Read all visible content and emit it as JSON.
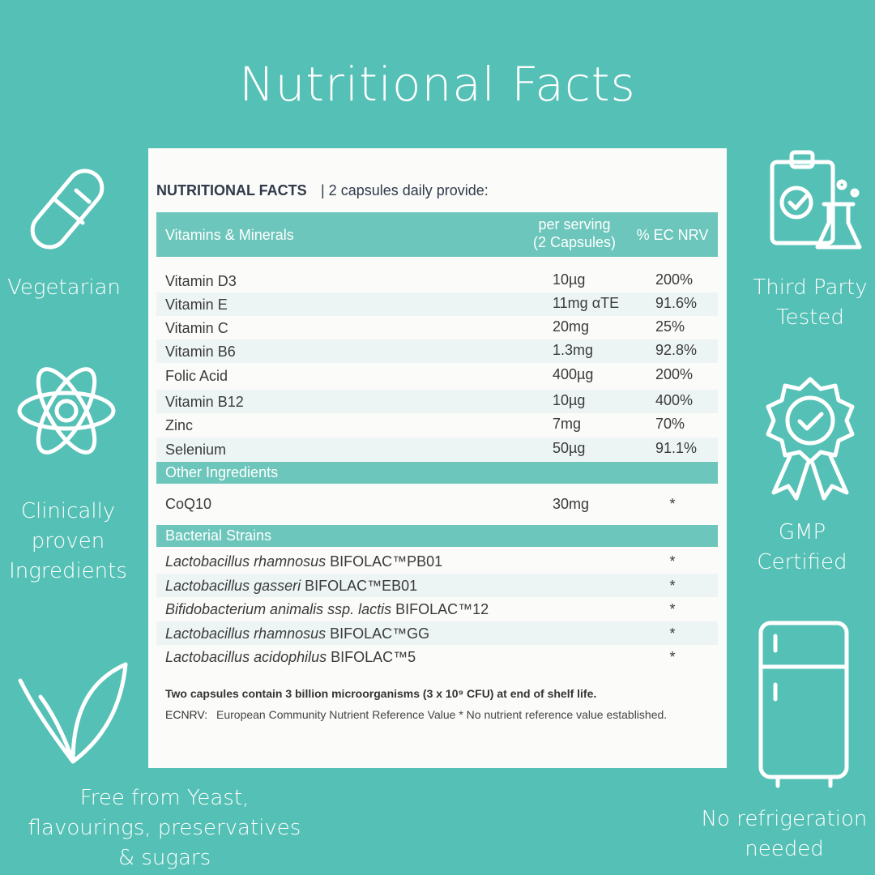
{
  "title": "Nutritional Facts",
  "features_left": [
    {
      "lines": [
        "Vegetarian"
      ]
    },
    {
      "lines": [
        "Clinically",
        "proven",
        "Ingredients"
      ]
    },
    {
      "lines": [
        "Free from Yeast,",
        "flavourings, preservatives",
        "& sugars"
      ]
    }
  ],
  "features_right": [
    {
      "lines": [
        "Third Party",
        "Tested"
      ]
    },
    {
      "lines": [
        "GMP",
        "Certified"
      ]
    },
    {
      "lines": [
        "No refrigeration",
        "needed"
      ]
    }
  ],
  "panel": {
    "heading": "NUTRITIONAL FACTS",
    "subheading": "| 2 capsules daily provide:",
    "header": {
      "name": "Vitamins & Minerals",
      "serving": [
        "per serving",
        "(2 Capsules)"
      ],
      "nrv": "% EC NRV"
    },
    "rows": [
      [
        "Vitamin D3",
        "10µg",
        "200%"
      ],
      [
        "Vitamin E",
        "11mg αTE",
        "91.6%"
      ],
      [
        "Vitamin C",
        "20mg",
        "25%"
      ],
      [
        "Vitamin B6",
        "1.3mg",
        "92.8%"
      ],
      [
        "Folic Acid",
        "400µg",
        "200%"
      ],
      [
        "Vitamin B12",
        "10µg",
        "400%"
      ],
      [
        "Zinc",
        "7mg",
        "70%"
      ],
      [
        "Selenium",
        "50µg",
        "91.1%"
      ]
    ],
    "other_title": "Other Ingredients",
    "other_rows": [
      [
        "CoQ10",
        "30mg",
        "*"
      ]
    ],
    "strains_title": "Bacterial Strains",
    "strains": [
      {
        "species": "Lactobacillus rhamnosus",
        "strain": "BIFOLAC™PB01",
        "nrv": "*"
      },
      {
        "species": "Lactobacillus gasseri",
        "strain": "BIFOLAC™EB01",
        "nrv": "*"
      },
      {
        "species": "Bifidobacterium animalis ssp. lactis",
        "strain": "BIFOLAC™12",
        "nrv": "*"
      },
      {
        "species": "Lactobacillus rhamnosus",
        "strain": "BIFOLAC™GG",
        "nrv": "*"
      },
      {
        "species": "Lactobacillus acidophilus",
        "strain": "BIFOLAC™5",
        "nrv": "*"
      }
    ],
    "footnote": "Two capsules contain 3 billion microorganisms (3 x 10⁹ CFU) at end of shelf life.",
    "legend_key": "ECNRV:",
    "legend_text": "European Community Nutrient Reference Value * No nutrient reference value established."
  }
}
